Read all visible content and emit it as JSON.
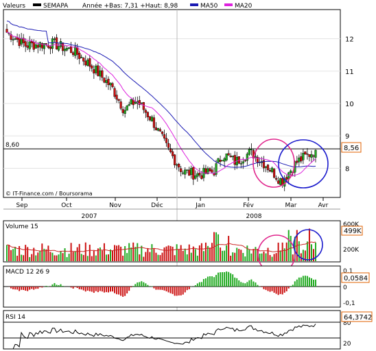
{
  "legend": {
    "label": "Valeurs",
    "series_name": "SEMAPA",
    "range_text": "Année +Bas: 7,31 +Haut: 8,98",
    "ma50_label": "MA50",
    "ma20_label": "MA20"
  },
  "colors": {
    "up": "#22aa22",
    "down": "#cc1111",
    "ma50": "#1a1ab4",
    "ma20": "#dd22dd",
    "annotation_magenta": "#e0258c",
    "annotation_blue": "#1a1acc",
    "volume_ma": "#cc2222",
    "rsi_line": "#000000"
  },
  "price_panel": {
    "y_ticks": [
      "12",
      "11",
      "10",
      "9",
      "8"
    ],
    "y_tick_values": [
      12,
      11,
      10,
      9,
      8
    ],
    "ylim": [
      7.1,
      12.9
    ],
    "reference_value": 8.6,
    "reference_label": "8,60",
    "last_value_label": "8,56",
    "last_value": 8.56,
    "credit": "© IT-Finance.com / Boursorama"
  },
  "x_axis": {
    "months": [
      "Sep",
      "Oct",
      "Nov",
      "Déc",
      "Jan",
      "Fév",
      "Mar",
      "Avr"
    ],
    "years": [
      "2007",
      "2008"
    ]
  },
  "volume_panel": {
    "label": "Volume 15",
    "y_ticks": [
      "600K",
      "200K"
    ],
    "last_label": "499K"
  },
  "macd_panel": {
    "label": "MACD 12 26 9",
    "y_ticks": [
      "0,1",
      "0",
      "-0,1"
    ],
    "last_label": "0,0584"
  },
  "rsi_panel": {
    "label": "RSI 14",
    "y_ticks": [
      "80",
      "20"
    ],
    "last_label": "64,3742"
  },
  "chart_data": {
    "type": "candlestick",
    "title": "SEMAPA",
    "x": [
      "Sep",
      "Oct",
      "Nov",
      "Déc",
      "Jan",
      "Fév",
      "Mar",
      "Avr"
    ],
    "close_keypoints": [
      {
        "pos": 0.0,
        "value": 12.2
      },
      {
        "pos": 0.06,
        "value": 11.8
      },
      {
        "pos": 0.15,
        "value": 11.85
      },
      {
        "pos": 0.22,
        "value": 11.6
      },
      {
        "pos": 0.28,
        "value": 11.1
      },
      {
        "pos": 0.34,
        "value": 10.5
      },
      {
        "pos": 0.38,
        "value": 9.8
      },
      {
        "pos": 0.42,
        "value": 10.1
      },
      {
        "pos": 0.47,
        "value": 9.5
      },
      {
        "pos": 0.52,
        "value": 8.6
      },
      {
        "pos": 0.57,
        "value": 7.9
      },
      {
        "pos": 0.62,
        "value": 7.8
      },
      {
        "pos": 0.67,
        "value": 7.9
      },
      {
        "pos": 0.7,
        "value": 8.45
      },
      {
        "pos": 0.74,
        "value": 8.2
      },
      {
        "pos": 0.79,
        "value": 8.5
      },
      {
        "pos": 0.84,
        "value": 8.1
      },
      {
        "pos": 0.89,
        "value": 7.6
      },
      {
        "pos": 0.94,
        "value": 8.2
      },
      {
        "pos": 1.0,
        "value": 8.56
      }
    ],
    "ylim": [
      7.1,
      12.9
    ],
    "series": [
      {
        "name": "SEMAPA",
        "last": 8.56
      },
      {
        "name": "MA50"
      },
      {
        "name": "MA20"
      }
    ],
    "volume": {
      "last": "499K"
    },
    "macd": {
      "last": 0.0584
    },
    "rsi": {
      "last": 64.3742
    }
  }
}
